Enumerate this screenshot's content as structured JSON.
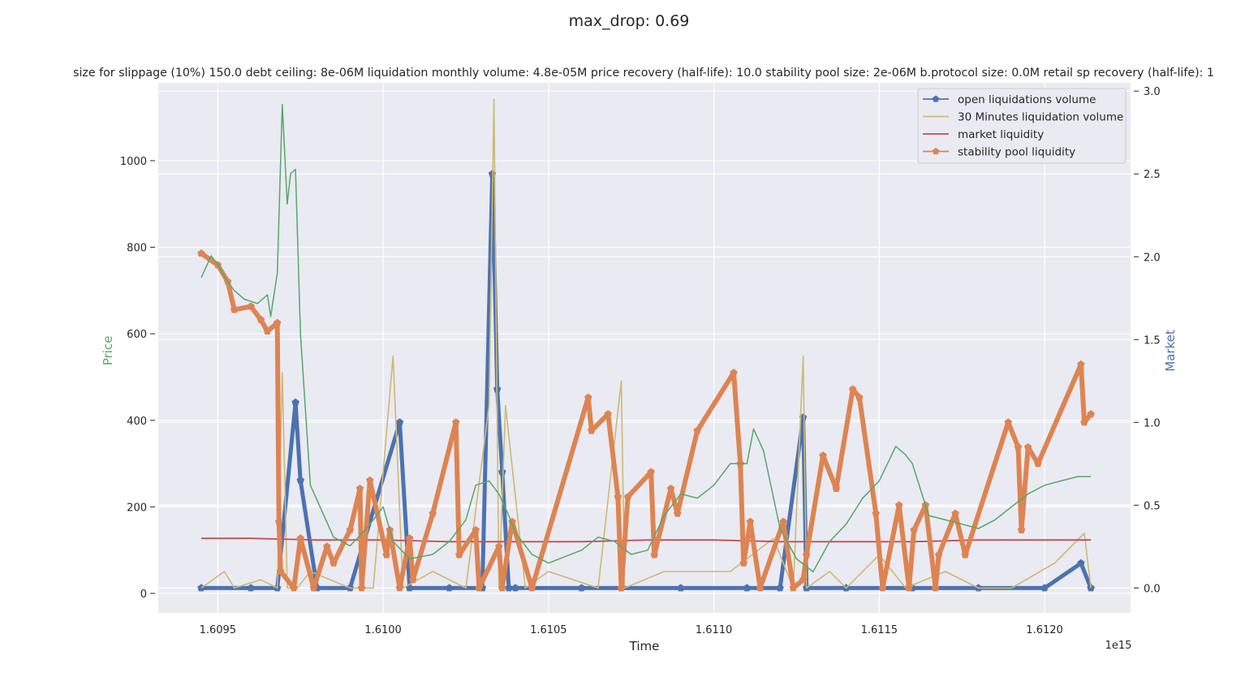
{
  "chart_data": {
    "type": "line",
    "title": "max_drop: 0.69",
    "subtitle": "size for slippage (10%) 150.0 debt ceiling: 8e-06M liquidation monthly volume: 4.8e-05M price recovery (half-life): 10.0 stability pool size: 2e-06M b.protocol size: 0.0M retail sp recovery (half-life): 1",
    "xlabel": "Time",
    "x_offset_label": "1e15",
    "ylabel_left": "Price",
    "ylabel_right": "Market",
    "xlim": [
      1.60932,
      1.61226
    ],
    "ylim_left": [
      -45,
      1180
    ],
    "ylim_right": [
      -0.15,
      3.05
    ],
    "x_ticks": [
      1.6095,
      1.61,
      1.6105,
      1.611,
      1.6115,
      1.612
    ],
    "x_tick_labels": [
      "1.6095",
      "1.6100",
      "1.6105",
      "1.6110",
      "1.6115",
      "1.6120"
    ],
    "y_left_ticks": [
      0,
      200,
      400,
      600,
      800,
      1000
    ],
    "y_left_tick_labels": [
      "0",
      "200",
      "400",
      "600",
      "800",
      "1000"
    ],
    "y_right_ticks": [
      0.0,
      0.5,
      1.0,
      1.5,
      2.0,
      2.5,
      3.0
    ],
    "y_right_tick_labels": [
      "0.0",
      "0.5",
      "1.0",
      "1.5",
      "2.0",
      "2.5",
      "3.0"
    ],
    "grid": true,
    "legend_position": "top-right",
    "colors": {
      "price": "#55a868",
      "open_liquidations": "#4c72b0",
      "liquidation_30min": "#ccb974",
      "market_liquidity": "#c44e52",
      "stability_pool": "#dd8452",
      "axes_bg": "#eaeaf2",
      "grid": "#ffffff"
    },
    "series": [
      {
        "name": "open liquidations volume",
        "axis": "right",
        "marker": "pentagon",
        "x": [
          1.60945,
          1.6096,
          1.60968,
          1.609735,
          1.60975,
          1.6098,
          1.6099,
          1.61005,
          1.61008,
          1.6102,
          1.6103,
          1.61033,
          1.610345,
          1.61036,
          1.61038,
          1.6104,
          1.6106,
          1.61072,
          1.6109,
          1.6111,
          1.6112,
          1.61127,
          1.61128,
          1.6114,
          1.6116,
          1.6118,
          1.612,
          1.61211,
          1.61214
        ],
        "y": [
          0.0,
          0.0,
          0.0,
          1.12,
          0.65,
          0.0,
          0.0,
          1.0,
          0.0,
          0.0,
          0.0,
          2.5,
          1.2,
          0.7,
          0.0,
          0.0,
          0.0,
          0.0,
          0.0,
          0.0,
          0.0,
          1.03,
          0.0,
          0.0,
          0.0,
          0.0,
          0.0,
          0.15,
          0.0
        ]
      },
      {
        "name": "30 Minutes liquidation volume",
        "axis": "right",
        "x": [
          1.60945,
          1.60952,
          1.60955,
          1.60963,
          1.60968,
          1.609695,
          1.60971,
          1.60974,
          1.60978,
          1.6099,
          1.60997,
          1.61003,
          1.61006,
          1.61015,
          1.61025,
          1.61032,
          1.610335,
          1.61035,
          1.61037,
          1.61043,
          1.6105,
          1.61065,
          1.61072,
          1.61073,
          1.61085,
          1.61095,
          1.61105,
          1.61118,
          1.61124,
          1.61127,
          1.61128,
          1.61135,
          1.6114,
          1.6115,
          1.61158,
          1.6117,
          1.6118,
          1.6119,
          1.61203,
          1.61212,
          1.61214
        ],
        "y": [
          0.0,
          0.1,
          0.0,
          0.05,
          0.0,
          1.3,
          0.0,
          0.0,
          0.1,
          0.0,
          0.0,
          1.4,
          0.0,
          0.1,
          0.0,
          1.1,
          2.95,
          0.0,
          1.1,
          0.0,
          0.1,
          0.0,
          1.25,
          0.0,
          0.1,
          0.1,
          0.1,
          0.3,
          0.0,
          1.4,
          0.0,
          0.1,
          0.0,
          0.2,
          0.0,
          0.1,
          0.0,
          0.0,
          0.15,
          0.33,
          0.0
        ]
      },
      {
        "name": "market liquidity",
        "axis": "right",
        "x": [
          1.60945,
          1.6096,
          1.6098,
          1.61,
          1.6102,
          1.6104,
          1.6106,
          1.6108,
          1.611,
          1.6112,
          1.6114,
          1.6116,
          1.6118,
          1.612,
          1.61214
        ],
        "y": [
          0.3,
          0.3,
          0.29,
          0.29,
          0.28,
          0.28,
          0.28,
          0.29,
          0.29,
          0.28,
          0.28,
          0.28,
          0.29,
          0.29,
          0.29
        ]
      },
      {
        "name": "stability pool liquidity",
        "axis": "right",
        "marker": "pentagon",
        "x": [
          1.60945,
          1.6095,
          1.60953,
          1.60955,
          1.6096,
          1.60963,
          1.60965,
          1.60968,
          1.609685,
          1.60969,
          1.60973,
          1.60975,
          1.60979,
          1.60983,
          1.60985,
          1.6099,
          1.60993,
          1.609935,
          1.60996,
          1.61001,
          1.61002,
          1.61005,
          1.61008,
          1.61009,
          1.61015,
          1.61022,
          1.61023,
          1.61028,
          1.61029,
          1.61035,
          1.61036,
          1.61039,
          1.61045,
          1.61062,
          1.61063,
          1.61068,
          1.61071,
          1.61072,
          1.61074,
          1.61081,
          1.61082,
          1.61087,
          1.61089,
          1.61095,
          1.61106,
          1.61108,
          1.61109,
          1.61111,
          1.61114,
          1.61121,
          1.61124,
          1.61127,
          1.61128,
          1.61133,
          1.61137,
          1.61142,
          1.61144,
          1.61149,
          1.61151,
          1.61156,
          1.61159,
          1.611605,
          1.61164,
          1.61167,
          1.61168,
          1.61173,
          1.61176,
          1.61189,
          1.61192,
          1.61193,
          1.61195,
          1.61198,
          1.61211,
          1.61212,
          1.61214
        ],
        "y": [
          2.02,
          1.95,
          1.85,
          1.68,
          1.7,
          1.62,
          1.55,
          1.6,
          0.4,
          0.1,
          0.0,
          0.3,
          0.0,
          0.25,
          0.15,
          0.35,
          0.6,
          0.0,
          0.65,
          0.2,
          0.35,
          0.0,
          0.3,
          0.05,
          0.45,
          1.0,
          0.2,
          0.35,
          0.0,
          0.25,
          0.0,
          0.4,
          0.0,
          1.15,
          0.95,
          1.05,
          0.55,
          0.0,
          0.55,
          0.7,
          0.2,
          0.6,
          0.45,
          0.95,
          1.3,
          0.75,
          0.15,
          0.4,
          0.0,
          0.4,
          0.0,
          0.05,
          0.2,
          0.8,
          0.6,
          1.2,
          1.15,
          0.45,
          0.0,
          0.5,
          0.0,
          0.35,
          0.5,
          0.0,
          0.2,
          0.45,
          0.2,
          1.0,
          0.85,
          0.35,
          0.85,
          0.75,
          1.35,
          1.0,
          1.05
        ]
      },
      {
        "name": "price",
        "axis": "left",
        "x": [
          1.60945,
          1.60948,
          1.6095,
          1.60953,
          1.60955,
          1.60958,
          1.60962,
          1.60965,
          1.60966,
          1.60968,
          1.609695,
          1.60971,
          1.60972,
          1.609735,
          1.60975,
          1.60978,
          1.60985,
          1.6099,
          1.60995,
          1.61,
          1.61003,
          1.61008,
          1.61015,
          1.6102,
          1.61025,
          1.61028,
          1.61032,
          1.61035,
          1.61038,
          1.6104,
          1.61045,
          1.6105,
          1.6106,
          1.61065,
          1.6107,
          1.61075,
          1.6108,
          1.61085,
          1.6109,
          1.61095,
          1.611,
          1.61105,
          1.6111,
          1.61112,
          1.61115,
          1.6112,
          1.61125,
          1.6113,
          1.61135,
          1.6114,
          1.61145,
          1.6115,
          1.61155,
          1.61158,
          1.6116,
          1.61165,
          1.6117,
          1.61175,
          1.6118,
          1.61185,
          1.6119,
          1.61195,
          1.612,
          1.61205,
          1.6121,
          1.61214
        ],
        "y": [
          730,
          780,
          760,
          720,
          700,
          680,
          670,
          690,
          640,
          740,
          1130,
          900,
          970,
          980,
          600,
          250,
          130,
          110,
          150,
          200,
          120,
          80,
          90,
          120,
          170,
          250,
          260,
          230,
          180,
          140,
          90,
          70,
          100,
          130,
          120,
          90,
          100,
          180,
          230,
          220,
          250,
          300,
          300,
          380,
          330,
          150,
          80,
          50,
          120,
          160,
          220,
          260,
          340,
          320,
          300,
          180,
          170,
          160,
          150,
          170,
          200,
          230,
          250,
          260,
          270,
          270
        ]
      }
    ]
  }
}
